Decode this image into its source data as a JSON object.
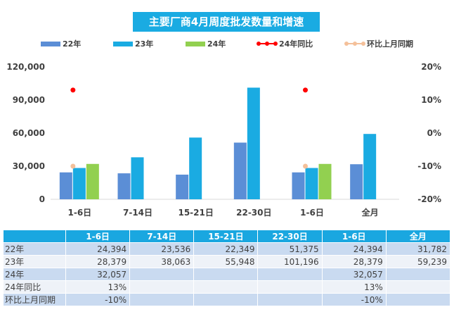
{
  "title": "主要厂商4月周度批发数量和增速",
  "colors": {
    "s22": "#5b8ed6",
    "s23": "#1aabe2",
    "s24": "#92d050",
    "yoy24": "#ff0000",
    "mom": "#f4c09a",
    "header_bg": "#1aa7e0"
  },
  "legend": [
    "22年",
    "23年",
    "24年",
    "24年同比",
    "环比上月同期"
  ],
  "chart_data": {
    "type": "bar",
    "categories": [
      "1-6日",
      "7-14日",
      "15-21日",
      "22-30日",
      "1-6日",
      "全月"
    ],
    "series": [
      {
        "name": "22年",
        "kind": "bar",
        "axis": "left",
        "values": [
          24394,
          23536,
          22349,
          51375,
          24394,
          31782
        ]
      },
      {
        "name": "23年",
        "kind": "bar",
        "axis": "left",
        "values": [
          28379,
          38063,
          55948,
          101196,
          28379,
          59239
        ]
      },
      {
        "name": "24年",
        "kind": "bar",
        "axis": "left",
        "values": [
          32057,
          null,
          null,
          null,
          32057,
          null
        ]
      },
      {
        "name": "24年同比",
        "kind": "dot",
        "axis": "right",
        "values": [
          13,
          null,
          null,
          null,
          13,
          null
        ]
      },
      {
        "name": "环比上月同期",
        "kind": "dot",
        "axis": "right",
        "values": [
          -10,
          null,
          null,
          null,
          -10,
          null
        ]
      }
    ],
    "y_left": {
      "min": 0,
      "max": 120000,
      "ticks": [
        "0",
        "30,000",
        "60,000",
        "90,000",
        "120,000"
      ]
    },
    "y_right": {
      "min": -20,
      "max": 20,
      "unit": "%",
      "ticks": [
        "-20%",
        "-10%",
        "0%",
        "10%",
        "20%"
      ]
    },
    "grid": false,
    "legend_position": "top"
  },
  "table": {
    "headers": [
      "",
      "1-6日",
      "7-14日",
      "15-21日",
      "22-30日",
      "1-6日",
      "全月"
    ],
    "rows": [
      {
        "label": "22年",
        "cells": [
          "24,394",
          "23,536",
          "22,349",
          "51,375",
          "24,394",
          "31,782"
        ]
      },
      {
        "label": "23年",
        "cells": [
          "28,379",
          "38,063",
          "55,948",
          "101,196",
          "28,379",
          "59,239"
        ]
      },
      {
        "label": "24年",
        "cells": [
          "32,057",
          "",
          "",
          "",
          "32,057",
          ""
        ]
      },
      {
        "label": "24年同比",
        "cells": [
          "13%",
          "",
          "",
          "",
          "13%",
          ""
        ]
      },
      {
        "label": "环比上月同期",
        "cells": [
          "-10%",
          "",
          "",
          "",
          "-10%",
          ""
        ]
      }
    ]
  }
}
